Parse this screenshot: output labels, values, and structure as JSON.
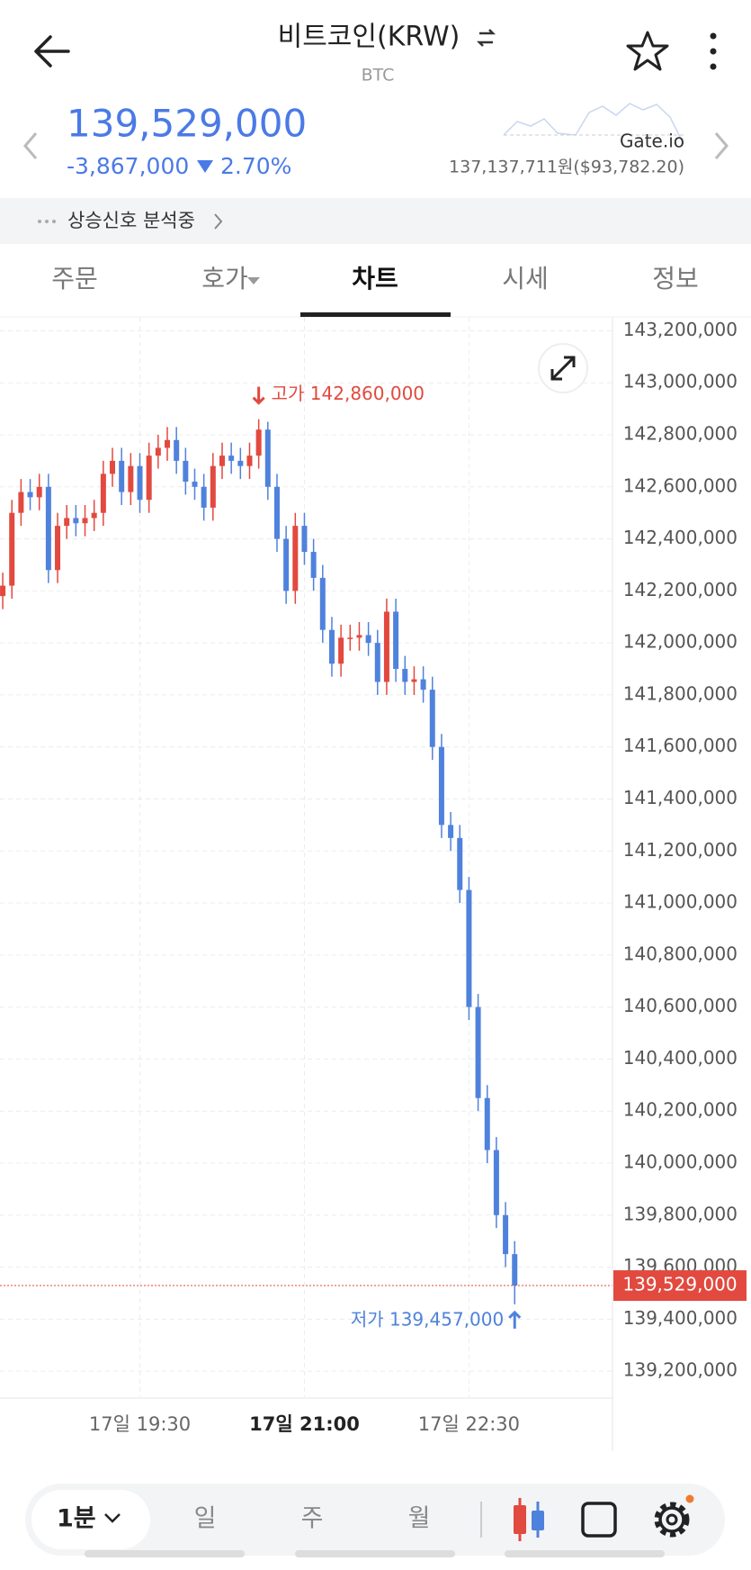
{
  "header": {
    "title": "비트코인(KRW)",
    "subtitle": "BTC"
  },
  "ticker": {
    "price": "139,529,000",
    "change": "-3,867,000",
    "change_rate": "2.70%",
    "exchange": "Gate.io",
    "exchange_price": "137,137,711원($93,782.20)"
  },
  "signal": "상승신호 분석중",
  "tabs": [
    "주문",
    "호가",
    "차트",
    "시세",
    "정보"
  ],
  "chart_data": {
    "type": "candlestick",
    "up_color": "#e2493f",
    "down_color": "#4f82dc",
    "grid": true,
    "open": [
      142180000,
      142220000,
      142500000,
      142580000,
      142560000,
      142600000,
      142280000,
      142450000,
      142480000,
      142460000,
      142480000,
      142500000,
      142650000,
      142700000,
      142580000,
      142680000,
      142550000,
      142720000,
      142750000,
      142780000,
      142700000,
      142620000,
      142600000,
      142520000,
      142680000,
      142720000,
      142700000,
      142680000,
      142720000,
      142820000,
      142600000,
      142400000,
      142200000,
      142450000,
      142350000,
      142250000,
      142050000,
      141920000,
      142020000,
      142020000,
      142030000,
      142000000,
      141850000,
      142120000,
      141900000,
      141850000,
      141860000,
      141820000,
      141600000,
      141300000,
      141250000,
      141050000,
      140600000,
      140250000,
      140050000,
      139800000,
      139650000
    ],
    "high": [
      142270000,
      142550000,
      142630000,
      142630000,
      142650000,
      142650000,
      142500000,
      142530000,
      142530000,
      142530000,
      142550000,
      142700000,
      142750000,
      142750000,
      142730000,
      142730000,
      142770000,
      142800000,
      142830000,
      142830000,
      142750000,
      142670000,
      142650000,
      142730000,
      142770000,
      142770000,
      142750000,
      142770000,
      142860000,
      142850000,
      142650000,
      142450000,
      142500000,
      142500000,
      142400000,
      142300000,
      142100000,
      142070000,
      142070000,
      142080000,
      142080000,
      142050000,
      142170000,
      142170000,
      141950000,
      141910000,
      141910000,
      141870000,
      141650000,
      141350000,
      141300000,
      141100000,
      140650000,
      140300000,
      140100000,
      139850000,
      139700000
    ],
    "low": [
      142130000,
      142170000,
      142450000,
      142510000,
      142510000,
      142230000,
      142230000,
      142400000,
      142410000,
      142410000,
      142430000,
      142450000,
      142600000,
      142530000,
      142530000,
      142500000,
      142500000,
      142670000,
      142700000,
      142650000,
      142570000,
      142550000,
      142470000,
      142470000,
      142630000,
      142650000,
      142630000,
      142630000,
      142670000,
      142550000,
      142350000,
      142150000,
      142150000,
      142300000,
      142200000,
      142000000,
      141870000,
      141870000,
      141970000,
      141970000,
      141950000,
      141800000,
      141800000,
      141850000,
      141800000,
      141800000,
      141770000,
      141550000,
      141250000,
      141200000,
      141000000,
      140550000,
      140200000,
      140000000,
      139750000,
      139600000,
      139457000
    ],
    "close": [
      142220000,
      142500000,
      142580000,
      142560000,
      142600000,
      142280000,
      142450000,
      142480000,
      142460000,
      142480000,
      142500000,
      142650000,
      142700000,
      142580000,
      142680000,
      142550000,
      142720000,
      142750000,
      142780000,
      142700000,
      142620000,
      142600000,
      142520000,
      142680000,
      142720000,
      142700000,
      142680000,
      142720000,
      142820000,
      142600000,
      142400000,
      142200000,
      142450000,
      142350000,
      142250000,
      142050000,
      141920000,
      142020000,
      142020000,
      142030000,
      142000000,
      141850000,
      142120000,
      141900000,
      141850000,
      141860000,
      141820000,
      141600000,
      141300000,
      141250000,
      141050000,
      140600000,
      140250000,
      140050000,
      139800000,
      139650000,
      139529000
    ],
    "xlim": [
      -0.3,
      66.7
    ],
    "xticks": [
      {
        "value": 15,
        "label": "17일 19:30"
      },
      {
        "value": 33,
        "label": "17일 21:00"
      },
      {
        "value": 51,
        "label": "17일 22:30"
      }
    ],
    "ylim": [
      139100000,
      143250000
    ],
    "yticks": [
      {
        "value": 139200000,
        "label": "139,200,000"
      },
      {
        "value": 139400000,
        "label": "139,400,000"
      },
      {
        "value": 139600000,
        "label": "139,600,000"
      },
      {
        "value": 139800000,
        "label": "139,800,000"
      },
      {
        "value": 140000000,
        "label": "140,000,000"
      },
      {
        "value": 140200000,
        "label": "140,200,000"
      },
      {
        "value": 140400000,
        "label": "140,400,000"
      },
      {
        "value": 140600000,
        "label": "140,600,000"
      },
      {
        "value": 140800000,
        "label": "140,800,000"
      },
      {
        "value": 141000000,
        "label": "141,000,000"
      },
      {
        "value": 141200000,
        "label": "141,200,000"
      },
      {
        "value": 141400000,
        "label": "141,400,000"
      },
      {
        "value": 141600000,
        "label": "141,600,000"
      },
      {
        "value": 141800000,
        "label": "141,800,000"
      },
      {
        "value": 142000000,
        "label": "142,000,000"
      },
      {
        "value": 142200000,
        "label": "142,200,000"
      },
      {
        "value": 142400000,
        "label": "142,400,000"
      },
      {
        "value": 142600000,
        "label": "142,600,000"
      },
      {
        "value": 142800000,
        "label": "142,800,000"
      },
      {
        "value": 143000000,
        "label": "143,000,000"
      },
      {
        "value": 143200000,
        "label": "143,200,000"
      }
    ],
    "annotations": {
      "high": "고가 142,860,000",
      "low": "저가 139,457,000"
    }
  },
  "toolbar": {
    "interval": "1분",
    "periods": [
      "일",
      "주",
      "월"
    ]
  }
}
